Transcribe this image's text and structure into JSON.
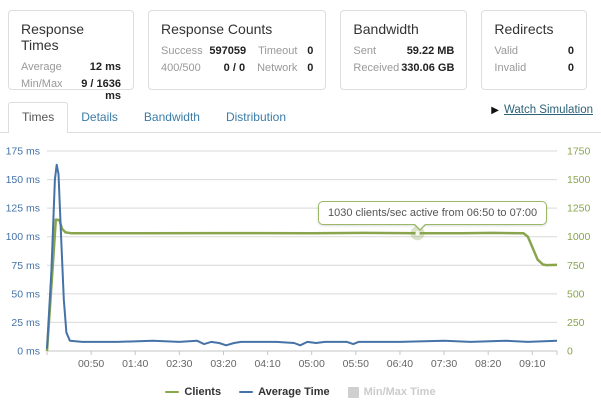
{
  "cards": [
    {
      "title": "Response Times",
      "rows": [
        {
          "label": "Average",
          "value": "12 ms"
        },
        {
          "label": "Min/Max",
          "value": "9 / 1636 ms"
        }
      ]
    },
    {
      "title": "Response Counts",
      "rows": [
        {
          "label": "Success",
          "value": "597059",
          "label2": "Timeout",
          "value2": "0"
        },
        {
          "label": "400/500",
          "value": "0 / 0",
          "label2": "Network",
          "value2": "0"
        }
      ]
    },
    {
      "title": "Bandwidth",
      "rows": [
        {
          "label": "Sent",
          "value": "59.22 MB"
        },
        {
          "label": "Received",
          "value": "330.06 GB"
        }
      ]
    },
    {
      "title": "Redirects",
      "rows": [
        {
          "label": "Valid",
          "value": "0"
        },
        {
          "label": "Invalid",
          "value": "0"
        }
      ]
    }
  ],
  "tabs": {
    "items": [
      {
        "label": "Times",
        "active": true
      },
      {
        "label": "Details",
        "active": false
      },
      {
        "label": "Bandwidth",
        "active": false
      },
      {
        "label": "Distribution",
        "active": false
      }
    ],
    "watch_icon": "play-icon",
    "watch_label": "Watch Simulation"
  },
  "chart_data": {
    "type": "line",
    "title": "",
    "grid": true,
    "legend_position": "bottom",
    "x_max": 578,
    "x_ticks": [
      {
        "t": 50,
        "label": "00:50"
      },
      {
        "t": 100,
        "label": "01:40"
      },
      {
        "t": 150,
        "label": "02:30"
      },
      {
        "t": 200,
        "label": "03:20"
      },
      {
        "t": 250,
        "label": "04:10"
      },
      {
        "t": 300,
        "label": "05:00"
      },
      {
        "t": 350,
        "label": "05:50"
      },
      {
        "t": 400,
        "label": "06:40"
      },
      {
        "t": 450,
        "label": "07:30"
      },
      {
        "t": 500,
        "label": "08:20"
      },
      {
        "t": 550,
        "label": "09:10"
      }
    ],
    "y_left": {
      "min": 0,
      "max": 175,
      "step": 25,
      "unit": "ms",
      "color": "#4572A7",
      "labels": [
        "175 ms",
        "150 ms",
        "125 ms",
        "100 ms",
        "75 ms",
        "50 ms",
        "25 ms",
        "0 ms"
      ]
    },
    "y_right": {
      "min": 0,
      "max": 1750,
      "step": 250,
      "unit": "clients",
      "color": "#89A54E",
      "labels": [
        "1750",
        "1500",
        "1250",
        "1000",
        "750",
        "500",
        "250",
        "0"
      ]
    },
    "series": [
      {
        "name": "Clients",
        "color": "#89A54E",
        "axis": "right",
        "width": 2.5,
        "points": [
          [
            0,
            0
          ],
          [
            7,
            800
          ],
          [
            10,
            1150
          ],
          [
            14,
            1145
          ],
          [
            17,
            1070
          ],
          [
            21,
            1038
          ],
          [
            28,
            1030
          ],
          [
            100,
            1030
          ],
          [
            200,
            1032
          ],
          [
            300,
            1030
          ],
          [
            360,
            1033
          ],
          [
            420,
            1030
          ],
          [
            470,
            1030
          ],
          [
            505,
            1033
          ],
          [
            540,
            1030
          ],
          [
            545,
            1000
          ],
          [
            556,
            800
          ],
          [
            562,
            757
          ],
          [
            566,
            752
          ],
          [
            578,
            753
          ]
        ]
      },
      {
        "name": "Average Time",
        "color": "#4572A7",
        "axis": "left",
        "width": 2,
        "points": [
          [
            0,
            2
          ],
          [
            5,
            70
          ],
          [
            9,
            150
          ],
          [
            11,
            163
          ],
          [
            13,
            155
          ],
          [
            16,
            100
          ],
          [
            19,
            45
          ],
          [
            22,
            16
          ],
          [
            26,
            9
          ],
          [
            40,
            8
          ],
          [
            80,
            8
          ],
          [
            120,
            9
          ],
          [
            150,
            8
          ],
          [
            170,
            9
          ],
          [
            178,
            6
          ],
          [
            186,
            8
          ],
          [
            195,
            7
          ],
          [
            203,
            5
          ],
          [
            212,
            7
          ],
          [
            220,
            8
          ],
          [
            260,
            8
          ],
          [
            280,
            7
          ],
          [
            287,
            5
          ],
          [
            295,
            8
          ],
          [
            305,
            7
          ],
          [
            315,
            8
          ],
          [
            340,
            8
          ],
          [
            347,
            6
          ],
          [
            353,
            8
          ],
          [
            400,
            8
          ],
          [
            450,
            9
          ],
          [
            480,
            8
          ],
          [
            520,
            9
          ],
          [
            545,
            8
          ],
          [
            578,
            9
          ]
        ]
      },
      {
        "name": "Min/Max Time",
        "color": "#CFCFCF",
        "axis": "left",
        "type": "area",
        "visible": false,
        "points": []
      }
    ],
    "marker": {
      "t": 420,
      "value": 1030,
      "series": "Clients"
    },
    "tooltip": {
      "text": "1030 clients/sec active from 06:50 to 07:00"
    }
  }
}
